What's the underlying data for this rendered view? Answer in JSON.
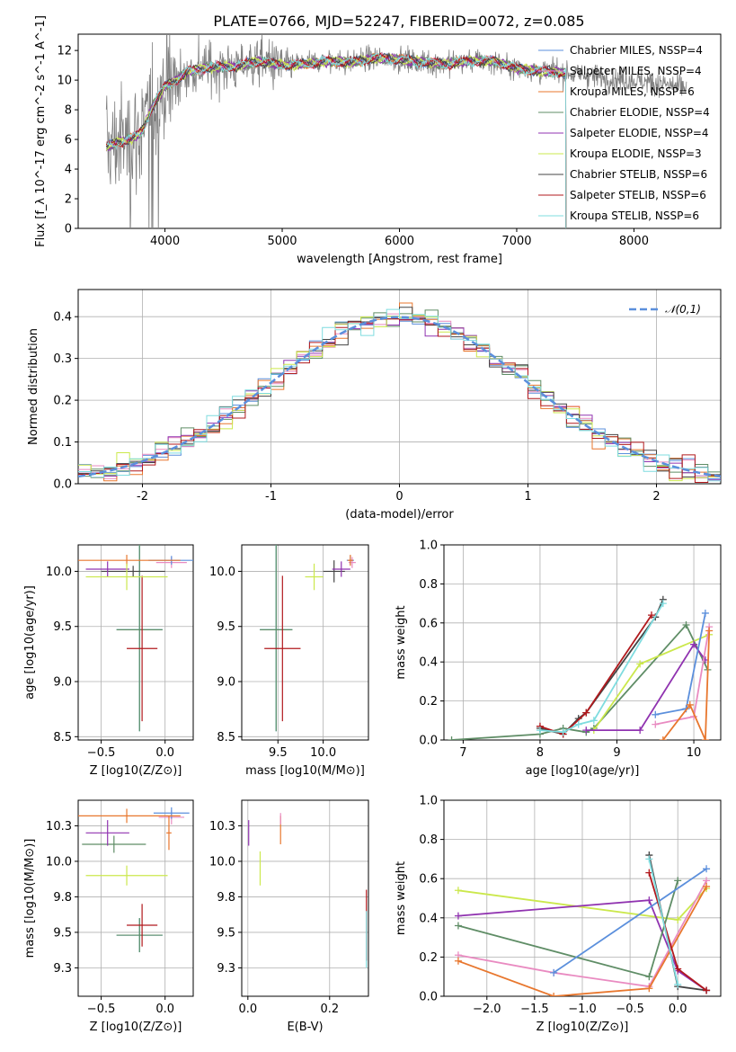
{
  "figure": {
    "title": "PLATE=0766, MJD=52247, FIBERID=0072, z=0.085",
    "models": [
      {
        "name": "Chabrier MILES",
        "nssp": "4",
        "color": "#5b8fdc"
      },
      {
        "name": "Salpeter MILES",
        "nssp": "4",
        "color": "#e98bc1"
      },
      {
        "name": "Kroupa MILES",
        "nssp": "6",
        "color": "#e8772e"
      },
      {
        "name": "Chabrier ELODIE",
        "nssp": "4",
        "color": "#5f8d66"
      },
      {
        "name": "Salpeter ELODIE",
        "nssp": "4",
        "color": "#9033b0"
      },
      {
        "name": "Kroupa ELODIE",
        "nssp": "3",
        "color": "#cbe84c"
      },
      {
        "name": "Chabrier STELIB",
        "nssp": "6",
        "color": "#444444"
      },
      {
        "name": "Salpeter STELIB",
        "nssp": "6",
        "color": "#b1191d"
      },
      {
        "name": "Kroupa STELIB",
        "nssp": "6",
        "color": "#7fdcdf"
      }
    ],
    "data_color": "#808080"
  },
  "chart_data": [
    {
      "id": "spectrum",
      "type": "line",
      "xlabel": "wavelength [Angstrom, rest frame]",
      "ylabel": "Flux [f_λ 10^-17 erg cm^-2 s^-1 A^-1]",
      "xlim": [
        3260,
        8740
      ],
      "ylim": [
        0,
        13.1
      ],
      "xticks": [
        4000,
        5000,
        6000,
        7000,
        8000
      ],
      "yticks": [
        0,
        2,
        4,
        6,
        8,
        10,
        12
      ],
      "legend_placement": "right",
      "continuum": {
        "x": [
          3500,
          3600,
          3700,
          3800,
          3900,
          4000,
          4100,
          4200,
          4400,
          4600,
          4800,
          5000,
          5200,
          5400,
          5600,
          5800,
          6000,
          6200,
          6400,
          6600,
          6800,
          7000,
          7200,
          7400,
          7600,
          7800,
          8000,
          8200,
          8400
        ],
        "y": [
          5.5,
          5.8,
          6.0,
          6.5,
          8.3,
          9.6,
          10.0,
          10.6,
          10.9,
          10.9,
          11.3,
          11.0,
          11.1,
          11.3,
          11.2,
          11.5,
          11.4,
          11.2,
          11.1,
          11.3,
          11.3,
          10.8,
          10.6,
          10.5,
          10.3,
          10.1,
          10.0,
          9.8,
          9.5
        ]
      },
      "model_x_range": [
        3500,
        7420
      ],
      "data_x_range": [
        3500,
        8450
      ]
    },
    {
      "id": "residuals",
      "type": "line",
      "xlabel": "(data-model)/error",
      "ylabel": "Normed distribution",
      "xlim": [
        -2.5,
        2.5
      ],
      "ylim": [
        0,
        0.465
      ],
      "xticks": [
        -2,
        -1,
        0,
        1,
        2
      ],
      "yticks": [
        0.0,
        0.1,
        0.2,
        0.3,
        0.4
      ],
      "reference_label": "𝒩(0,1)",
      "reference_color": "#5b8fdc",
      "legend_placement": "top-right",
      "bin_width": 0.1
    },
    {
      "id": "age_vs_Z",
      "type": "scatter",
      "xlabel": "Z [log10(Z/Z⊙)]",
      "ylabel": "age  [log10(age/yr)]",
      "xlim": [
        -0.68,
        0.22
      ],
      "ylim": [
        8.47,
        10.24
      ],
      "xticks": [
        -0.5,
        0.0
      ],
      "yticks": [
        8.5,
        9.0,
        9.5,
        10.0
      ],
      "points": [
        {
          "x": -0.2,
          "xerr": 0.18,
          "y": 9.47,
          "yerr": 0.92,
          "model": 0
        },
        {
          "x": -0.2,
          "xerr": 0.18,
          "y": 9.47,
          "yerr": 0.92,
          "model": 8
        },
        {
          "x": -0.2,
          "xerr": 0.18,
          "y": 9.47,
          "yerr": 0.92,
          "model": 3
        },
        {
          "x": -0.18,
          "xerr": 0.12,
          "y": 9.3,
          "yerr": 0.66,
          "model": 7
        },
        {
          "x": 0.05,
          "xerr": 0.12,
          "y": 10.08,
          "yerr": 0.05,
          "model": 1
        },
        {
          "x": 0.05,
          "xerr": 0.18,
          "y": 10.1,
          "yerr": 0.04,
          "model": 0
        },
        {
          "x": -0.3,
          "xerr": 0.42,
          "y": 10.1,
          "yerr": 0.05,
          "model": 2
        },
        {
          "x": -0.25,
          "xerr": 0.25,
          "y": 10.0,
          "yerr": 0.05,
          "model": 6
        },
        {
          "x": -0.45,
          "xerr": 0.17,
          "y": 10.02,
          "yerr": 0.07,
          "model": 4
        },
        {
          "x": -0.3,
          "xerr": 0.32,
          "y": 9.95,
          "yerr": 0.12,
          "model": 5
        }
      ]
    },
    {
      "id": "age_vs_mass",
      "type": "scatter",
      "xlabel": "mass [log10(M/M⊙)]",
      "ylabel": "",
      "xlim": [
        9.1,
        10.5
      ],
      "ylim": [
        8.47,
        10.24
      ],
      "xticks": [
        9.5,
        10.0
      ],
      "yticks": [
        8.5,
        9.0,
        9.5,
        10.0
      ],
      "points": [
        {
          "x": 9.48,
          "xerr": 0.18,
          "y": 9.47,
          "yerr": 0.92,
          "model": 0
        },
        {
          "x": 9.48,
          "xerr": 0.18,
          "y": 9.47,
          "yerr": 0.92,
          "model": 8
        },
        {
          "x": 9.48,
          "xerr": 0.18,
          "y": 9.47,
          "yerr": 0.92,
          "model": 3
        },
        {
          "x": 9.55,
          "xerr": 0.2,
          "y": 9.3,
          "yerr": 0.66,
          "model": 7
        },
        {
          "x": 10.32,
          "xerr": 0.04,
          "y": 10.08,
          "yerr": 0.05,
          "model": 1
        },
        {
          "x": 10.3,
          "xerr": 0.04,
          "y": 10.1,
          "yerr": 0.04,
          "model": 0
        },
        {
          "x": 10.3,
          "xerr": 0.03,
          "y": 10.1,
          "yerr": 0.05,
          "model": 2
        },
        {
          "x": 10.12,
          "xerr": 0.12,
          "y": 10.0,
          "yerr": 0.1,
          "model": 6
        },
        {
          "x": 10.2,
          "xerr": 0.1,
          "y": 10.02,
          "yerr": 0.07,
          "model": 4
        },
        {
          "x": 9.9,
          "xerr": 0.1,
          "y": 9.95,
          "yerr": 0.12,
          "model": 5
        }
      ]
    },
    {
      "id": "weight_vs_age",
      "type": "line",
      "xlabel": "age  [log10(age/yr)]",
      "ylabel": "mass weight",
      "xlim": [
        6.75,
        10.35
      ],
      "ylim": [
        0.0,
        1.0
      ],
      "xticks": [
        7,
        8,
        9,
        10
      ],
      "yticks": [
        0.0,
        0.2,
        0.4,
        0.6,
        0.8,
        1.0
      ],
      "series": [
        {
          "model": 3,
          "x": [
            6.85,
            8.0,
            8.3,
            8.6,
            8.7,
            9.9,
            10.18
          ],
          "y": [
            0.0,
            0.03,
            0.06,
            0.04,
            0.06,
            0.59,
            0.36
          ]
        },
        {
          "model": 6,
          "x": [
            8.0,
            8.3,
            8.5,
            8.6,
            9.5,
            9.6
          ],
          "y": [
            0.06,
            0.03,
            0.11,
            0.14,
            0.63,
            0.72
          ]
        },
        {
          "model": 7,
          "x": [
            8.0,
            8.3,
            8.6,
            9.45
          ],
          "y": [
            0.07,
            0.03,
            0.14,
            0.64
          ]
        },
        {
          "model": 8,
          "x": [
            8.0,
            8.3,
            8.5,
            8.7,
            9.6
          ],
          "y": [
            0.05,
            0.04,
            0.08,
            0.1,
            0.7
          ]
        },
        {
          "model": 5,
          "x": [
            8.7,
            9.3,
            10.2
          ],
          "y": [
            0.05,
            0.39,
            0.54
          ]
        },
        {
          "model": 4,
          "x": [
            8.6,
            9.3,
            10.0,
            10.15
          ],
          "y": [
            0.05,
            0.05,
            0.49,
            0.41
          ]
        },
        {
          "model": 0,
          "x": [
            9.5,
            9.9,
            10.15
          ],
          "y": [
            0.13,
            0.16,
            0.65
          ]
        },
        {
          "model": 1,
          "x": [
            9.5,
            10.0,
            10.2
          ],
          "y": [
            0.08,
            0.12,
            0.58
          ]
        },
        {
          "model": 2,
          "x": [
            9.6,
            9.95,
            10.15,
            10.2
          ],
          "y": [
            0.0,
            0.18,
            0.0,
            0.56
          ]
        }
      ]
    },
    {
      "id": "mass_vs_Z",
      "type": "scatter",
      "xlabel": "Z [log10(Z/Z⊙)]",
      "ylabel": "mass [log10(M/M⊙)]",
      "xlim": [
        -0.68,
        0.22
      ],
      "ylim": [
        9.05,
        10.43
      ],
      "xticks": [
        -0.5,
        0.0
      ],
      "yticks": [
        9.25,
        9.5,
        9.75,
        10.0,
        10.25
      ],
      "points": [
        {
          "x": -0.2,
          "xerr": 0.18,
          "y": 9.48,
          "yerr": 0.12,
          "model": 0
        },
        {
          "x": -0.2,
          "xerr": 0.18,
          "y": 9.48,
          "yerr": 0.12,
          "model": 8
        },
        {
          "x": -0.2,
          "xerr": 0.18,
          "y": 9.48,
          "yerr": 0.12,
          "model": 3
        },
        {
          "x": -0.18,
          "xerr": 0.12,
          "y": 9.55,
          "yerr": 0.15,
          "model": 7
        },
        {
          "x": 0.05,
          "xerr": 0.1,
          "y": 10.31,
          "yerr": 0.05,
          "model": 1
        },
        {
          "x": 0.05,
          "xerr": 0.14,
          "y": 10.34,
          "yerr": 0.04,
          "model": 0
        },
        {
          "x": -0.3,
          "xerr": 0.42,
          "y": 10.32,
          "yerr": 0.05,
          "model": 2
        },
        {
          "x": -0.4,
          "xerr": 0.25,
          "y": 10.12,
          "yerr": 0.06,
          "model": 3
        },
        {
          "x": -0.45,
          "xerr": 0.17,
          "y": 10.2,
          "yerr": 0.09,
          "model": 4
        },
        {
          "x": -0.3,
          "xerr": 0.32,
          "y": 9.9,
          "yerr": 0.07,
          "model": 5
        },
        {
          "x": 0.03,
          "xerr": 0.02,
          "y": 10.2,
          "yerr": 0.12,
          "model": 2
        }
      ]
    },
    {
      "id": "mass_vs_ebv",
      "type": "scatter",
      "xlabel": "E(B-V)",
      "ylabel": "",
      "xlim": [
        -0.015,
        0.295
      ],
      "ylim": [
        9.05,
        10.43
      ],
      "xticks": [
        0.0,
        0.2
      ],
      "yticks": [
        9.25,
        9.5,
        9.75,
        10.0,
        10.25
      ],
      "points": [
        {
          "x": 0.29,
          "xerr": 0.0,
          "y": 9.55,
          "yerr": 0.25,
          "model": 7
        },
        {
          "x": 0.29,
          "xerr": 0.0,
          "y": 9.45,
          "yerr": 0.2,
          "model": 8
        },
        {
          "x": 0.002,
          "xerr": 0.0,
          "y": 10.2,
          "yerr": 0.09,
          "model": 4
        },
        {
          "x": 0.03,
          "xerr": 0.0,
          "y": 9.95,
          "yerr": 0.12,
          "model": 5
        },
        {
          "x": 0.08,
          "xerr": 0.0,
          "y": 10.22,
          "yerr": 0.1,
          "model": 2
        },
        {
          "x": 0.08,
          "xerr": 0.0,
          "y": 10.3,
          "yerr": 0.04,
          "model": 1
        }
      ]
    },
    {
      "id": "weight_vs_Z",
      "type": "line",
      "xlabel": "Z [log10(Z/Z⊙)]",
      "ylabel": "mass weight",
      "xlim": [
        -2.45,
        0.45
      ],
      "ylim": [
        0.0,
        1.0
      ],
      "xticks": [
        -2.0,
        -1.5,
        -1.0,
        -0.5,
        0.0
      ],
      "yticks": [
        0.0,
        0.2,
        0.4,
        0.6,
        0.8,
        1.0
      ],
      "series": [
        {
          "model": 5,
          "x": [
            -2.3,
            0.0,
            0.3
          ],
          "y": [
            0.54,
            0.39,
            0.55
          ]
        },
        {
          "model": 4,
          "x": [
            -2.3,
            -0.3,
            0.0,
            0.3
          ],
          "y": [
            0.41,
            0.49,
            0.13,
            0.03
          ]
        },
        {
          "model": 3,
          "x": [
            -2.3,
            -0.3,
            0.0
          ],
          "y": [
            0.36,
            0.1,
            0.59
          ]
        },
        {
          "model": 1,
          "x": [
            -2.3,
            -1.3,
            -0.3,
            0.3
          ],
          "y": [
            0.21,
            0.12,
            0.05,
            0.59
          ]
        },
        {
          "model": 2,
          "x": [
            -2.3,
            -1.3,
            -0.3,
            0.3
          ],
          "y": [
            0.18,
            0.0,
            0.04,
            0.56
          ]
        },
        {
          "model": 0,
          "x": [
            -1.3,
            0.3
          ],
          "y": [
            0.12,
            0.65
          ]
        },
        {
          "model": 6,
          "x": [
            -0.3,
            0.0,
            0.3
          ],
          "y": [
            0.72,
            0.05,
            0.03
          ]
        },
        {
          "model": 7,
          "x": [
            -0.3,
            0.0,
            0.3
          ],
          "y": [
            0.63,
            0.14,
            0.03
          ]
        },
        {
          "model": 8,
          "x": [
            -0.3,
            0.0
          ],
          "y": [
            0.7,
            0.06
          ]
        }
      ]
    }
  ]
}
